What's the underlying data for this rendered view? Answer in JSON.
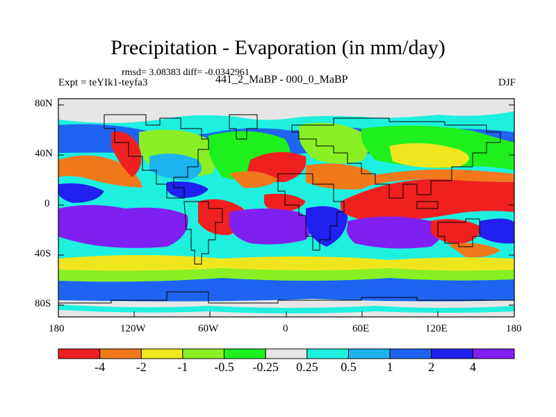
{
  "title": "Precipitation - Evaporation (in mm/day)",
  "stats_line": "rmsd= 3.08383 diff= -0.0342961",
  "expt_line": "Expt = teYIk1-teyfa3",
  "subtitle": "441_2_MaBP - 000_0_MaBP",
  "season": "DJF",
  "lat_labels": [
    "80N",
    "40N",
    "0",
    "40S",
    "80S"
  ],
  "lon_labels": [
    "180",
    "120W",
    "60W",
    "0",
    "60E",
    "120E",
    "180"
  ],
  "colorbar": {
    "labels": [
      "-4",
      "-2",
      "-1",
      "-0.5",
      "-0.25",
      "0.25",
      "0.5",
      "1",
      "2",
      "4"
    ],
    "colors": [
      "#f02020",
      "#f2781c",
      "#f0e61e",
      "#8af024",
      "#1ef01e",
      "#e6e6e6",
      "#1ef0e0",
      "#1eb4f0",
      "#1e64f0",
      "#2020f0",
      "#8020f0"
    ]
  },
  "map_colors": {
    "purple": "#8020f0",
    "deep_blue": "#2020f0",
    "blue": "#1e64f0",
    "sky": "#1eb4f0",
    "cyan": "#1ef0e0",
    "grey": "#e6e6e6",
    "green": "#1ef01e",
    "lime": "#8af024",
    "yellow": "#f0e61e",
    "orange": "#f2781c",
    "red": "#f02020"
  }
}
